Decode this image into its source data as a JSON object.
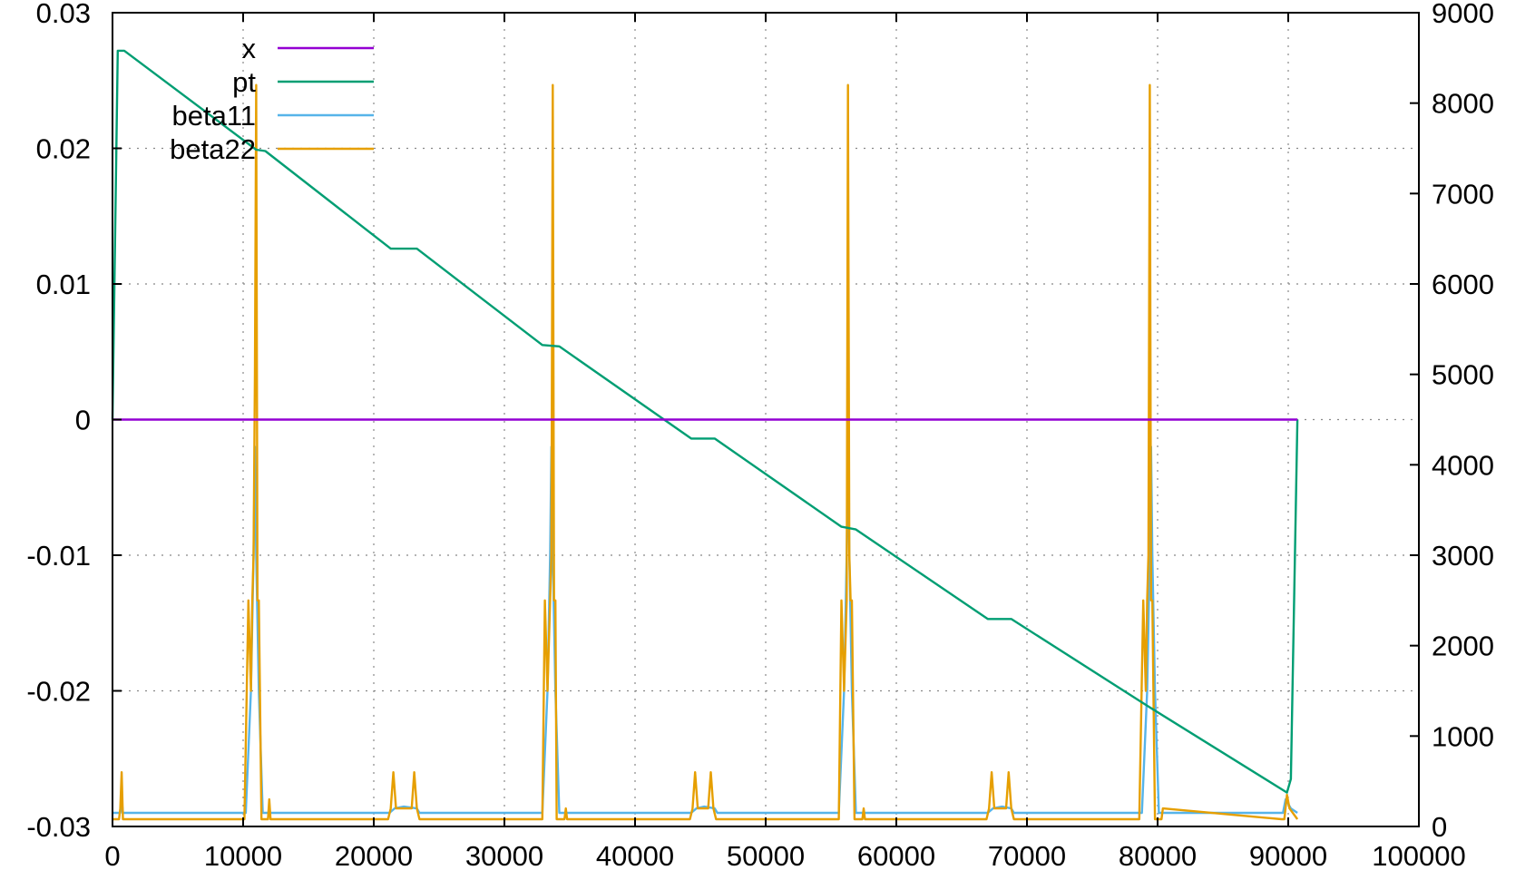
{
  "chart_data": {
    "type": "line",
    "title": "",
    "xlabel": "",
    "ylabel": "",
    "y2label": "",
    "xlim": [
      0,
      100000
    ],
    "ylim": [
      -0.03,
      0.03
    ],
    "y2lim": [
      0,
      9000
    ],
    "grid": true,
    "legend_position": "top-left",
    "x_ticks": [
      "0",
      "10000",
      "20000",
      "30000",
      "40000",
      "50000",
      "60000",
      "70000",
      "80000",
      "90000",
      "100000"
    ],
    "y_ticks": [
      "-0.03",
      "-0.02",
      "-0.01",
      "0",
      "0.01",
      "0.02",
      "0.03"
    ],
    "y2_ticks": [
      "0",
      "1000",
      "2000",
      "3000",
      "4000",
      "5000",
      "6000",
      "7000",
      "8000",
      "9000"
    ],
    "series": [
      {
        "name": "x",
        "axis": "y1",
        "color": "#9400d3",
        "x": [
          0,
          90700
        ],
        "y": [
          0,
          0
        ]
      },
      {
        "name": "pt",
        "axis": "y1",
        "color": "#009e73",
        "x": [
          0,
          400,
          900,
          11000,
          11700,
          21300,
          23300,
          32900,
          34200,
          44300,
          46100,
          55800,
          56900,
          67000,
          68800,
          79200,
          89900,
          90200,
          90700
        ],
        "y": [
          0.0,
          0.0272,
          0.0272,
          0.0199,
          0.0198,
          0.0126,
          0.0126,
          0.0055,
          0.0054,
          -0.0014,
          -0.0014,
          -0.0079,
          -0.0081,
          -0.0147,
          -0.0147,
          -0.0211,
          -0.0275,
          -0.0265,
          0.0
        ]
      },
      {
        "name": "beta11",
        "axis": "y2",
        "color": "#56b4e9",
        "x": [
          0,
          600,
          700,
          800,
          10200,
          10600,
          10800,
          10900,
          11000,
          11200,
          11500,
          21200,
          21600,
          22300,
          23300,
          23500,
          32900,
          33300,
          33500,
          33600,
          33700,
          33900,
          34200,
          44300,
          44700,
          45300,
          46100,
          46300,
          55600,
          56000,
          56200,
          56300,
          56400,
          56600,
          56900,
          67000,
          67400,
          68100,
          68800,
          69000,
          78800,
          79200,
          79400,
          79500,
          79600,
          79800,
          80100,
          89600,
          89800,
          90200,
          90700
        ],
        "y": [
          150,
          150,
          300,
          150,
          150,
          1500,
          3000,
          4200,
          3000,
          1500,
          150,
          150,
          200,
          220,
          200,
          150,
          150,
          1500,
          3000,
          4200,
          3000,
          1500,
          150,
          150,
          200,
          220,
          200,
          150,
          150,
          1500,
          3000,
          4200,
          3000,
          1500,
          150,
          150,
          200,
          220,
          200,
          150,
          150,
          1500,
          3000,
          4200,
          3000,
          1500,
          150,
          150,
          300,
          200,
          150
        ]
      },
      {
        "name": "beta22",
        "axis": "y2",
        "color": "#e69f00",
        "x": [
          0,
          500,
          600,
          700,
          800,
          10100,
          10400,
          10600,
          10700,
          10800,
          10900,
          11000,
          11100,
          11200,
          11400,
          11900,
          12000,
          12100,
          21100,
          21300,
          21500,
          21700,
          22900,
          23100,
          23300,
          23500,
          32900,
          33100,
          33300,
          33500,
          33600,
          33700,
          33800,
          33900,
          34000,
          34200,
          34600,
          34700,
          34800,
          44200,
          44400,
          44600,
          44800,
          45600,
          45800,
          46000,
          46200,
          55600,
          55800,
          56000,
          56200,
          56300,
          56400,
          56500,
          56600,
          56800,
          57000,
          57400,
          57500,
          57600,
          66900,
          67100,
          67300,
          67500,
          68400,
          68600,
          68800,
          69000,
          78600,
          78900,
          79100,
          79200,
          79300,
          79400,
          79500,
          79600,
          79800,
          80200,
          80300,
          80400,
          89500,
          89700,
          89900,
          90100,
          90700
        ],
        "y": [
          80,
          80,
          200,
          600,
          80,
          80,
          2500,
          1500,
          2500,
          3000,
          5000,
          8200,
          2500,
          2500,
          80,
          80,
          300,
          80,
          80,
          200,
          600,
          200,
          200,
          600,
          200,
          80,
          80,
          2500,
          1500,
          2500,
          3000,
          8200,
          2500,
          2500,
          80,
          80,
          80,
          200,
          80,
          80,
          200,
          600,
          200,
          200,
          600,
          200,
          80,
          80,
          2500,
          1500,
          2500,
          8200,
          3000,
          2500,
          2500,
          80,
          80,
          80,
          200,
          80,
          80,
          200,
          600,
          200,
          200,
          600,
          200,
          80,
          80,
          2500,
          1500,
          2500,
          3000,
          8200,
          2500,
          2500,
          80,
          80,
          80,
          200,
          80,
          80,
          350,
          200,
          80
        ]
      }
    ]
  }
}
